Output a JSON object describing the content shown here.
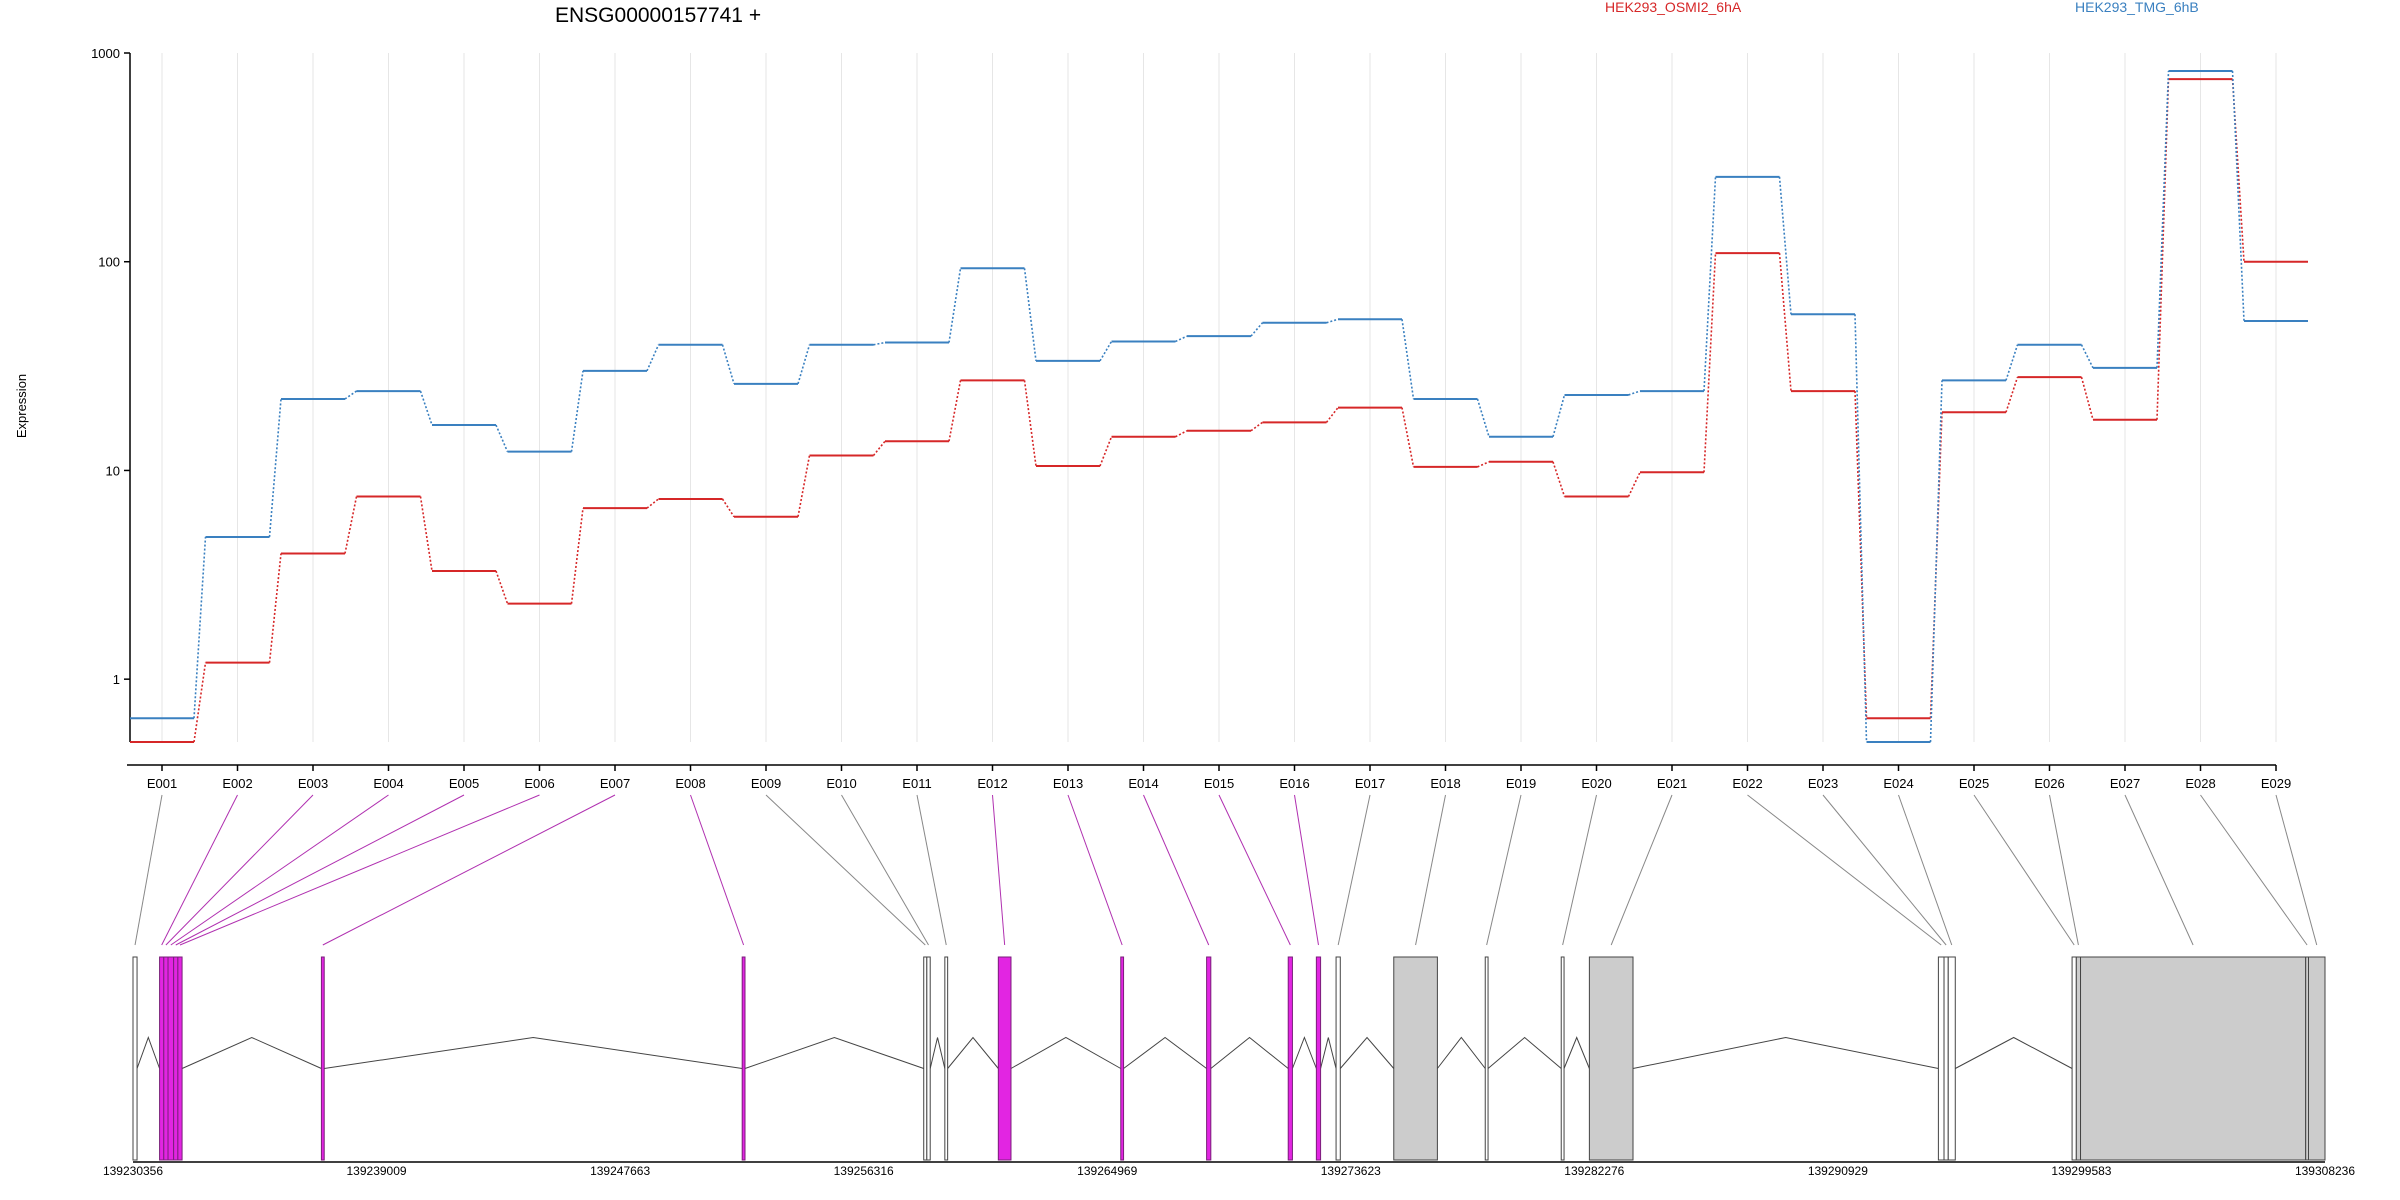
{
  "chart_data": {
    "type": "line",
    "title": "ENSG00000157741 +",
    "ylabel": "Expression",
    "y_scale": "log",
    "y_ticks": [
      1,
      10,
      100,
      1000
    ],
    "y_tick_labels": [
      "1",
      "10",
      "100",
      "1000"
    ],
    "ylim": [
      0.5,
      1000
    ],
    "grid": "vertical lines at exon bins",
    "legend_position": "top",
    "categories": [
      "E001",
      "E002",
      "E003",
      "E004",
      "E005",
      "E006",
      "E007",
      "E008",
      "E009",
      "E010",
      "E011",
      "E012",
      "E013",
      "E014",
      "E015",
      "E016",
      "E017",
      "E018",
      "E019",
      "E020",
      "E021",
      "E022",
      "E023",
      "E024",
      "E025",
      "E026",
      "E027",
      "E028",
      "E029"
    ],
    "series": [
      {
        "name": "HEK293_OSMI2_6hA",
        "color": "#d62728",
        "values": [
          0.5,
          1.2,
          4.0,
          7.5,
          3.3,
          2.3,
          6.6,
          7.3,
          6.0,
          11.8,
          13.8,
          27.0,
          10.5,
          14.5,
          15.5,
          17.0,
          20.0,
          10.4,
          11.0,
          7.5,
          9.8,
          110,
          24.0,
          0.65,
          19.0,
          28.0,
          17.5,
          750,
          100
        ]
      },
      {
        "name": "HEK293_TMG_6hB",
        "color": "#3a80c0",
        "values": [
          0.65,
          4.8,
          22.0,
          24.0,
          16.5,
          12.3,
          30.0,
          40.0,
          26.0,
          40.0,
          41.0,
          93.0,
          33.5,
          41.5,
          44.0,
          51.0,
          53.0,
          22.0,
          14.5,
          23.0,
          24.0,
          255,
          56.0,
          0.5,
          27.0,
          40.0,
          31.0,
          820,
          52.0
        ]
      }
    ],
    "gene_model": {
      "coordinate_labels": [
        "139230356",
        "139239009",
        "139247663",
        "139256316",
        "139264969",
        "139273623",
        "139282276",
        "139290929",
        "139299583",
        "139308236"
      ],
      "coordinate_range": [
        139230356,
        139308236
      ],
      "exon_bins": [
        {
          "id": "E001",
          "start": 139230356,
          "end": 139230500,
          "fill": "#ffffff",
          "highlight": false
        },
        {
          "id": "E002",
          "start": 139231300,
          "end": 139231450,
          "fill": "#e225e2",
          "highlight": true
        },
        {
          "id": "E003",
          "start": 139231450,
          "end": 139231600,
          "fill": "#e225e2",
          "highlight": true
        },
        {
          "id": "E004",
          "start": 139231600,
          "end": 139231800,
          "fill": "#e225e2",
          "highlight": true
        },
        {
          "id": "E005",
          "start": 139231800,
          "end": 139231950,
          "fill": "#e225e2",
          "highlight": true
        },
        {
          "id": "E006",
          "start": 139231950,
          "end": 139232100,
          "fill": "#e225e2",
          "highlight": true
        },
        {
          "id": "E007",
          "start": 139237050,
          "end": 139237150,
          "fill": "#e225e2",
          "highlight": true
        },
        {
          "id": "E008",
          "start": 139252000,
          "end": 139252100,
          "fill": "#e225e2",
          "highlight": true
        },
        {
          "id": "E009",
          "start": 139258450,
          "end": 139258560,
          "fill": "#ffffff",
          "highlight": false
        },
        {
          "id": "E010",
          "start": 139258560,
          "end": 139258680,
          "fill": "#ffffff",
          "highlight": false
        },
        {
          "id": "E011",
          "start": 139259200,
          "end": 139259300,
          "fill": "#ffffff",
          "highlight": false
        },
        {
          "id": "E012",
          "start": 139261100,
          "end": 139261550,
          "fill": "#e225e2",
          "highlight": true
        },
        {
          "id": "E013",
          "start": 139265450,
          "end": 139265550,
          "fill": "#e225e2",
          "highlight": true
        },
        {
          "id": "E014",
          "start": 139268500,
          "end": 139268650,
          "fill": "#e225e2",
          "highlight": true
        },
        {
          "id": "E015",
          "start": 139271400,
          "end": 139271550,
          "fill": "#e225e2",
          "highlight": true
        },
        {
          "id": "E016",
          "start": 139272400,
          "end": 139272550,
          "fill": "#e225e2",
          "highlight": true
        },
        {
          "id": "E017",
          "start": 139273100,
          "end": 139273250,
          "fill": "#ffffff",
          "highlight": false
        },
        {
          "id": "E018",
          "start": 139275150,
          "end": 139276700,
          "fill": "#cccccc",
          "highlight": false
        },
        {
          "id": "E019",
          "start": 139278400,
          "end": 139278500,
          "fill": "#ffffff",
          "highlight": false
        },
        {
          "id": "E020",
          "start": 139281100,
          "end": 139281200,
          "fill": "#ffffff",
          "highlight": false
        },
        {
          "id": "E021",
          "start": 139282100,
          "end": 139283650,
          "fill": "#cccccc",
          "highlight": false
        },
        {
          "id": "E022",
          "start": 139294500,
          "end": 139294700,
          "fill": "#ffffff",
          "highlight": false
        },
        {
          "id": "E023",
          "start": 139294700,
          "end": 139294850,
          "fill": "#ffffff",
          "highlight": false
        },
        {
          "id": "E024",
          "start": 139294850,
          "end": 139295100,
          "fill": "#ffffff",
          "highlight": false
        },
        {
          "id": "E025",
          "start": 139299250,
          "end": 139299400,
          "fill": "#ffffff",
          "highlight": false
        },
        {
          "id": "E026",
          "start": 139299400,
          "end": 139299550,
          "fill": "#cccccc",
          "highlight": false
        },
        {
          "id": "E027",
          "start": 139299550,
          "end": 139307550,
          "fill": "#cccccc",
          "highlight": false
        },
        {
          "id": "E028",
          "start": 139307550,
          "end": 139307650,
          "fill": "#cccccc",
          "highlight": false
        },
        {
          "id": "E029",
          "start": 139307650,
          "end": 139308236,
          "fill": "#cccccc",
          "highlight": false
        }
      ]
    }
  }
}
